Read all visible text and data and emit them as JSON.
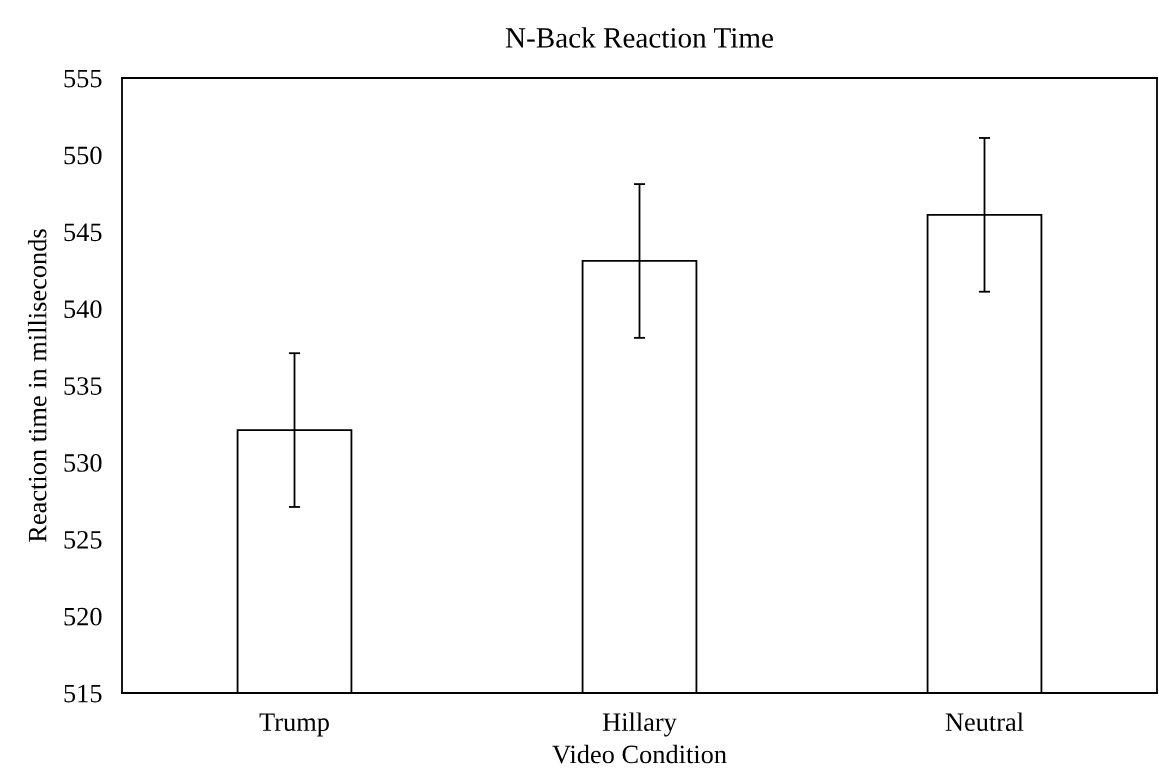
{
  "chart_data": {
    "type": "bar",
    "title": "N-Back Reaction Time",
    "xlabel": "Video Condition",
    "ylabel": "Reaction time in milliseconds",
    "categories": [
      "Trump",
      "Hillary",
      "Neutral"
    ],
    "values": [
      532.1,
      543.1,
      546.1
    ],
    "errors": [
      5,
      5,
      5
    ],
    "color": "#ffffff",
    "ylim": [
      515,
      555
    ],
    "yticks": [
      515,
      520,
      525,
      530,
      535,
      540,
      545,
      550,
      555
    ],
    "grid": false
  }
}
